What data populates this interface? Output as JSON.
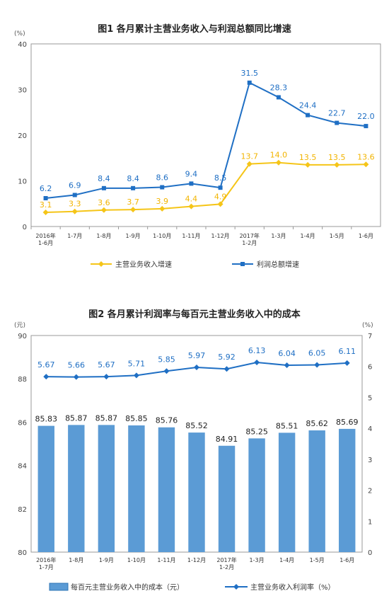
{
  "charts": [
    {
      "title": "图1  各月累计主营业务收入与利润总额同比增速",
      "unit": "(%)",
      "chart_data": {
        "type": "line",
        "categories": [
          "2016年\n1-6月",
          "1-7月",
          "1-8月",
          "1-9月",
          "1-10月",
          "1-11月",
          "1-12月",
          "2017年\n1-2月",
          "1-3月",
          "1-4月",
          "1-5月",
          "1-6月"
        ],
        "ylim": [
          0,
          40
        ],
        "yticks": [
          0,
          10,
          20,
          30,
          40
        ],
        "series": [
          {
            "name": "主营业务收入增速",
            "color": "#f5c518",
            "values": [
              3.1,
              3.3,
              3.6,
              3.7,
              3.9,
              4.4,
              4.9,
              13.7,
              14.0,
              13.5,
              13.5,
              13.6
            ]
          },
          {
            "name": "利润总额增速",
            "color": "#1f6fc4",
            "values": [
              6.2,
              6.9,
              8.4,
              8.4,
              8.6,
              9.4,
              8.5,
              31.5,
              28.3,
              24.4,
              22.7,
              22.0
            ]
          }
        ]
      }
    },
    {
      "title": "图2  各月累计利润率与每百元主营业务收入中的成本",
      "unit_left": "(元)",
      "unit_right": "(%)",
      "chart_data": {
        "type": "bar",
        "categories": [
          "2016年\n1-7月",
          "1-8月",
          "1-9月",
          "1-10月",
          "1-11月",
          "1-12月",
          "2017年\n1-2月",
          "1-3月",
          "1-4月",
          "1-5月",
          "1-6月"
        ],
        "ylim": [
          80,
          90
        ],
        "yticks": [
          80,
          82,
          84,
          86,
          88,
          90
        ],
        "y2lim": [
          0,
          7
        ],
        "y2ticks": [
          0,
          1,
          2,
          3,
          4,
          5,
          6,
          7
        ],
        "series": [
          {
            "name": "每百元主营业务收入中的成本（元）",
            "type": "bar",
            "color": "#5b9bd5",
            "values": [
              85.83,
              85.87,
              85.87,
              85.85,
              85.76,
              85.52,
              84.91,
              85.25,
              85.51,
              85.62,
              85.69
            ]
          },
          {
            "name": "主营业务收入利润率（%）",
            "type": "line",
            "color": "#1f6fc4",
            "values": [
              5.67,
              5.66,
              5.67,
              5.71,
              5.85,
              5.97,
              5.92,
              6.13,
              6.04,
              6.05,
              6.11
            ]
          }
        ]
      }
    }
  ]
}
